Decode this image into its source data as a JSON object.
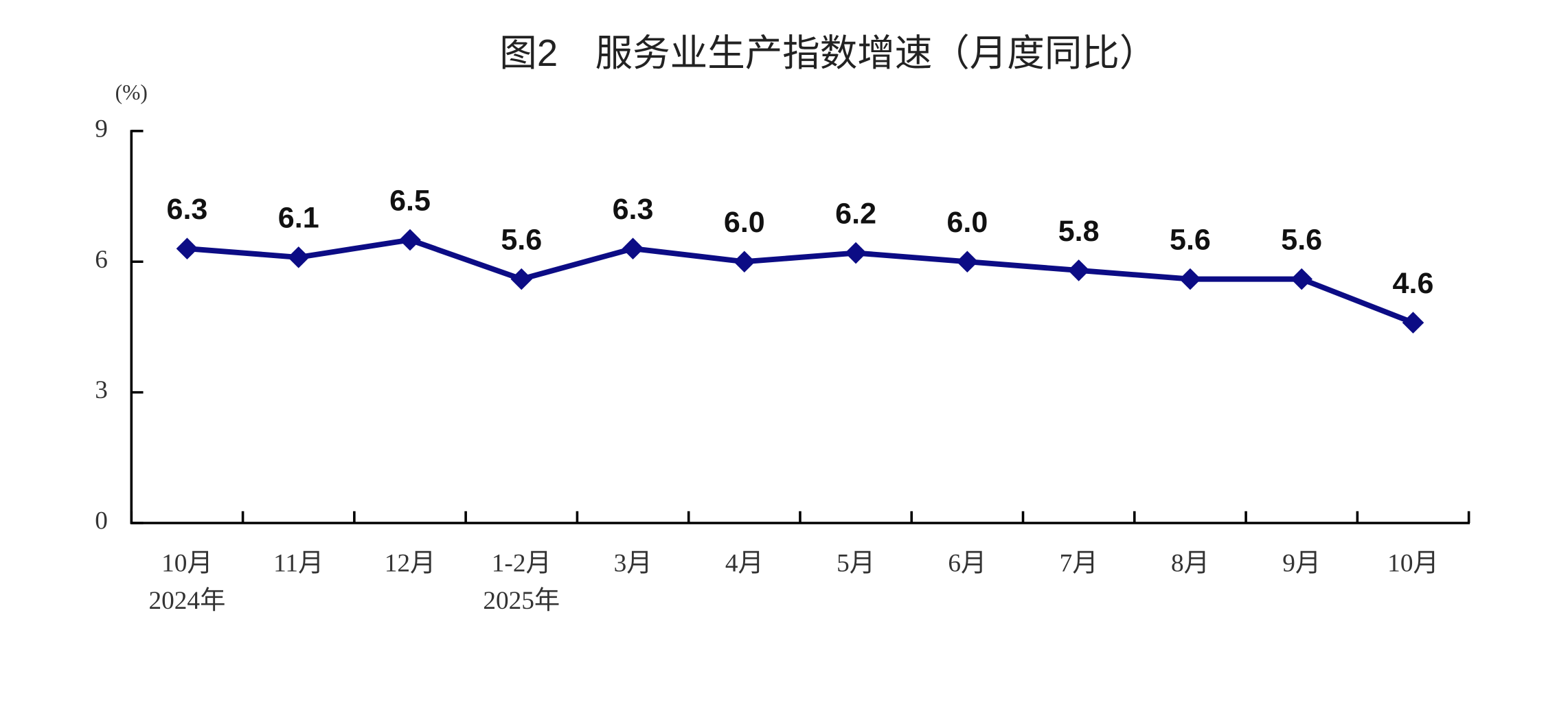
{
  "chart_data": {
    "type": "line",
    "title": "图2　服务业生产指数增速（月度同比）",
    "y_label": "(%)",
    "categories": [
      "10月",
      "11月",
      "12月",
      "1-2月",
      "3月",
      "4月",
      "5月",
      "6月",
      "7月",
      "8月",
      "9月",
      "10月"
    ],
    "category_years": [
      "2024年",
      null,
      null,
      "2025年",
      null,
      null,
      null,
      null,
      null,
      null,
      null,
      null
    ],
    "series": [
      {
        "name": "服务业生产指数增速",
        "color": "#0c0c85",
        "values": [
          6.3,
          6.1,
          6.5,
          5.6,
          6.3,
          6.0,
          6.2,
          6.0,
          5.8,
          5.6,
          5.6,
          4.6
        ],
        "value_labels": [
          "6.3",
          "6.1",
          "6.5",
          "5.6",
          "6.3",
          "6.0",
          "6.2",
          "6.0",
          "5.8",
          "5.6",
          "5.6",
          "4.6"
        ]
      }
    ],
    "ylim": [
      0,
      9
    ],
    "yticks": [
      0,
      3,
      6,
      9
    ],
    "grid": false
  }
}
